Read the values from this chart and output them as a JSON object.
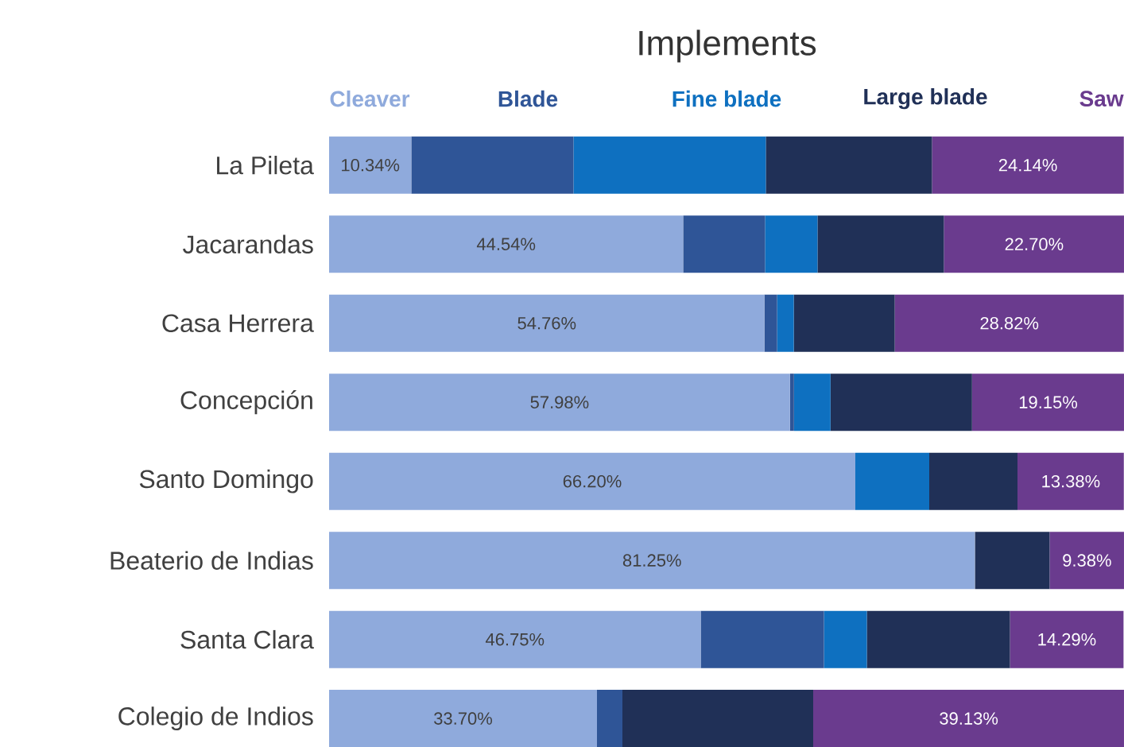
{
  "chart_data": {
    "type": "bar",
    "orientation": "horizontal",
    "stacked": true,
    "title": "Implements",
    "legend": "top",
    "tick_labels": "y",
    "xlim": [
      0,
      100
    ],
    "categories": [
      "La Pileta",
      "Jacarandas",
      "Casa Herrera",
      "Concepción",
      "Santo Domingo",
      "Beaterio de Indias",
      "Santa Clara",
      "Colegio de Indios"
    ],
    "series": [
      {
        "name": "Cleaver",
        "color": "#8faadc",
        "values": [
          10.34,
          44.54,
          54.76,
          57.98,
          66.2,
          81.25,
          46.75,
          33.7
        ],
        "value_labels": [
          "10.34%",
          "44.54%",
          "54.76%",
          "57.98%",
          "66.20%",
          "81.25%",
          "46.75%",
          "33.70%"
        ]
      },
      {
        "name": "Blade",
        "color": "#2f5597",
        "values": [
          20.4,
          10.3,
          1.6,
          0.5,
          0,
          0,
          15.5,
          3.2
        ]
      },
      {
        "name": "Fine blade",
        "color": "#0e70c0",
        "values": [
          24.2,
          6.6,
          2.1,
          4.6,
          9.3,
          0,
          5.4,
          0
        ]
      },
      {
        "name": "Large blade",
        "color": "#203057",
        "values": [
          20.9,
          15.9,
          12.7,
          17.8,
          11.1,
          9.4,
          18.0,
          24.0
        ]
      },
      {
        "name": "Saw",
        "color": "#6a3b8e",
        "values": [
          24.14,
          22.7,
          28.82,
          19.15,
          13.38,
          9.38,
          14.29,
          39.13
        ],
        "value_labels": [
          "24.14%",
          "22.70%",
          "28.82%",
          "19.15%",
          "13.38%",
          "9.38%",
          "14.29%",
          "39.13%"
        ]
      }
    ]
  }
}
